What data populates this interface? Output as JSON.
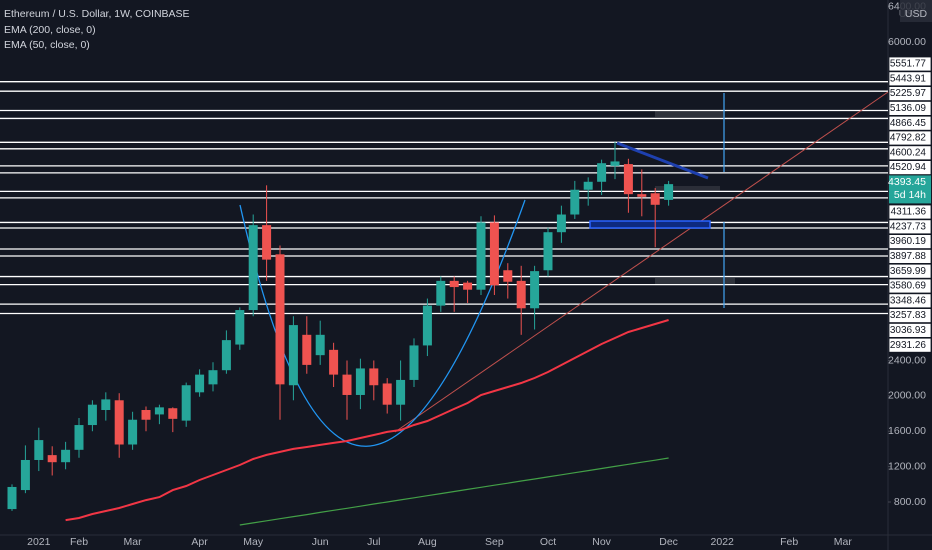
{
  "chart_data": {
    "type": "candlestick",
    "title": "Ethereum / U.S. Dollar, 1W, COINBASE",
    "y_axis_label": "USD",
    "countdown": "5d 14h",
    "up_color": "#26a69a",
    "down_color": "#ef5350",
    "grid": false,
    "categories": [
      null,
      null,
      "2021",
      null,
      null,
      "Feb",
      null,
      null,
      null,
      "Mar",
      null,
      null,
      null,
      null,
      "Apr",
      null,
      null,
      null,
      "May",
      null,
      null,
      null,
      null,
      "Jun",
      null,
      null,
      null,
      "Jul",
      null,
      null,
      null,
      "Aug",
      null,
      null,
      null,
      null,
      "Sep",
      null,
      null,
      null,
      "Oct",
      null,
      null,
      null,
      "Nov",
      null,
      null,
      null,
      null,
      "Dec",
      null,
      null,
      null,
      "2022",
      null,
      null,
      null,
      null,
      "Feb",
      null,
      null,
      null,
      "Mar",
      null,
      null,
      null
    ],
    "open": [
      720,
      935,
      1275,
      1330,
      1250,
      1390,
      1670,
      1840,
      1950,
      1450,
      1840,
      1790,
      1860,
      1720,
      2040,
      2130,
      2290,
      2580,
      2970,
      3930,
      3600,
      2120,
      2690,
      2460,
      2520,
      2240,
      2010,
      2310,
      2140,
      1900,
      2180,
      2570,
      3020,
      3300,
      3280,
      3200,
      3960,
      3420,
      3300,
      2990,
      3420,
      3850,
      4050,
      4330,
      4420,
      4600,
      4620,
      4280,
      4290,
      4215,
      null,
      null,
      null,
      null,
      null,
      null,
      null,
      null,
      null,
      null,
      null,
      null,
      null,
      null,
      null,
      null
    ],
    "high": [
      1000,
      1440,
      1640,
      1430,
      1480,
      1750,
      1950,
      2040,
      2030,
      1820,
      1880,
      1900,
      1870,
      2150,
      2300,
      2380,
      2740,
      3000,
      4050,
      4380,
      3700,
      2900,
      2900,
      2850,
      2600,
      2400,
      2420,
      2400,
      2200,
      2400,
      2650,
      3100,
      3350,
      3350,
      3300,
      4030,
      4040,
      3500,
      3470,
      3470,
      3900,
      4150,
      4430,
      4470,
      4670,
      4870,
      4680,
      4560,
      4350,
      4430,
      null,
      null,
      null,
      null,
      null,
      null,
      null,
      null,
      null,
      null,
      null,
      null,
      null,
      null,
      null,
      null
    ],
    "low": [
      700,
      900,
      1150,
      1100,
      1170,
      1300,
      1600,
      1720,
      1300,
      1390,
      1600,
      1680,
      1590,
      1650,
      1990,
      2050,
      2250,
      2520,
      2900,
      3300,
      1730,
      1950,
      2250,
      2350,
      2100,
      1730,
      1850,
      1950,
      1800,
      1720,
      2100,
      2450,
      2950,
      2950,
      3050,
      3140,
      3140,
      3100,
      2690,
      2750,
      3350,
      3730,
      4000,
      4150,
      4270,
      4450,
      4070,
      4030,
      3680,
      4150,
      null,
      null,
      null,
      null,
      null,
      null,
      null,
      null,
      null,
      null,
      null,
      null,
      null,
      null,
      null,
      null
    ],
    "close": [
      970,
      1275,
      1500,
      1250,
      1390,
      1670,
      1900,
      1960,
      1450,
      1730,
      1730,
      1870,
      1740,
      2120,
      2240,
      2290,
      2630,
      2970,
      3930,
      3540,
      2130,
      2800,
      2350,
      2690,
      2240,
      2010,
      2310,
      2120,
      1900,
      2180,
      2570,
      3020,
      3300,
      3230,
      3200,
      3960,
      3250,
      3290,
      2990,
      3410,
      3850,
      4050,
      4330,
      4420,
      4630,
      4650,
      4280,
      4250,
      4160,
      4393.45,
      null,
      null,
      null,
      null,
      null,
      null,
      null,
      null,
      null,
      null,
      null,
      null,
      null,
      null,
      null,
      null
    ],
    "series": [
      {
        "name": "EMA (200, close, 0)",
        "color": "#43a047",
        "values": [
          null,
          null,
          null,
          null,
          null,
          null,
          null,
          null,
          null,
          null,
          null,
          null,
          null,
          null,
          null,
          null,
          null,
          540,
          564,
          587,
          611,
          635,
          658,
          682,
          706,
          729,
          753,
          777,
          800,
          824,
          848,
          871,
          895,
          919,
          942,
          966,
          990,
          1013,
          1037,
          1060,
          1084,
          1108,
          1131,
          1155,
          1179,
          1202,
          1226,
          1250,
          1273,
          1297,
          null,
          null,
          null,
          null,
          null,
          null,
          null,
          null,
          null,
          null,
          null,
          null,
          null,
          null,
          null,
          null
        ]
      },
      {
        "name": "EMA (50, close, 0)",
        "color": "#f23645",
        "values": [
          null,
          null,
          null,
          null,
          596,
          619,
          664,
          698,
          732,
          777,
          822,
          856,
          935,
          981,
          1049,
          1105,
          1162,
          1218,
          1286,
          1332,
          1366,
          1400,
          1422,
          1445,
          1468,
          1490,
          1524,
          1558,
          1592,
          1614,
          1671,
          1716,
          1784,
          1852,
          1919,
          2010,
          2055,
          2100,
          2145,
          2202,
          2270,
          2349,
          2428,
          2507,
          2586,
          2654,
          2722,
          2767,
          2812,
          2857,
          null,
          null,
          null,
          null,
          null,
          null,
          null,
          null,
          null,
          null,
          null,
          null,
          null,
          null,
          null,
          null
        ]
      }
    ],
    "ylim": [
      427,
      6475
    ],
    "yticks": [
      {
        "value": 6400,
        "label": "6400.00"
      },
      {
        "value": 6000,
        "label": "6000.00"
      },
      {
        "value": 2400,
        "label": "2400.00"
      },
      {
        "value": 2000,
        "label": "2000.00"
      },
      {
        "value": 1600,
        "label": "1600.00"
      },
      {
        "value": 1200,
        "label": "1200.00"
      },
      {
        "value": 800,
        "label": "800.00"
      }
    ],
    "levels": [
      5551.77,
      5443.91,
      5225.97,
      5136.09,
      4866.45,
      4792.82,
      4600.24,
      4520.94,
      4311.36,
      4237.73,
      3960.19,
      3897.88,
      3659.99,
      3580.69,
      3348.46,
      3257.83,
      3036.93,
      2931.26
    ]
  }
}
